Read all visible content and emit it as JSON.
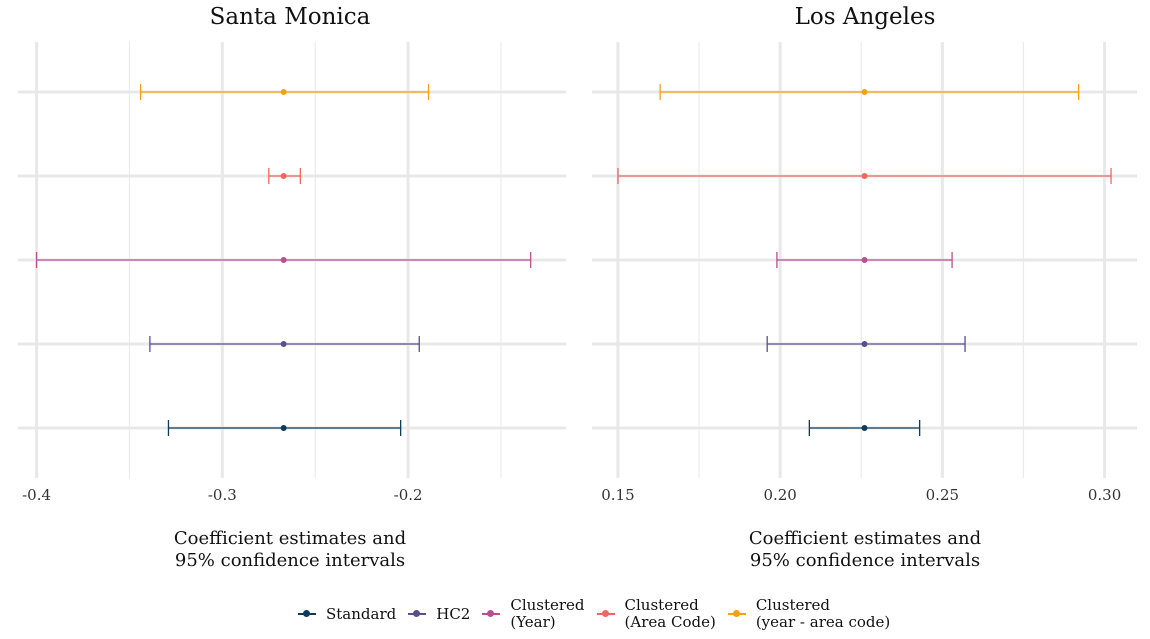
{
  "chart_data": [
    {
      "type": "errorbar",
      "title": "Santa Monica",
      "xlabel": "Coefficient estimates and\n95% confidence intervals",
      "ylabel": "",
      "xlim": [
        -0.41,
        -0.115
      ],
      "xticks": [
        -0.4,
        -0.3,
        -0.2
      ],
      "xtick_labels": [
        "-0.4",
        "-0.3",
        "-0.2"
      ],
      "minor_xticks": [
        -0.35,
        -0.25,
        -0.15
      ],
      "grid": true,
      "series": [
        {
          "name": "Standard",
          "estimate": -0.267,
          "lower": -0.329,
          "upper": -0.204
        },
        {
          "name": "HC2",
          "estimate": -0.267,
          "lower": -0.339,
          "upper": -0.194
        },
        {
          "name": "Clustered (Year)",
          "estimate": -0.267,
          "lower": -0.4,
          "upper": -0.134
        },
        {
          "name": "Clustered (Area Code)",
          "estimate": -0.267,
          "lower": -0.275,
          "upper": -0.258
        },
        {
          "name": "Clustered (year - area code)",
          "estimate": -0.267,
          "lower": -0.344,
          "upper": -0.189
        }
      ]
    },
    {
      "type": "errorbar",
      "title": "Los Angeles",
      "xlabel": "Coefficient estimates and\n95% confidence intervals",
      "ylabel": "",
      "xlim": [
        0.142,
        0.31
      ],
      "xticks": [
        0.15,
        0.2,
        0.25,
        0.3
      ],
      "xtick_labels": [
        "0.15",
        "0.20",
        "0.25",
        "0.30"
      ],
      "minor_xticks": [
        0.175,
        0.225,
        0.275
      ],
      "grid": true,
      "series": [
        {
          "name": "Standard",
          "estimate": 0.226,
          "lower": 0.209,
          "upper": 0.243
        },
        {
          "name": "HC2",
          "estimate": 0.226,
          "lower": 0.196,
          "upper": 0.257
        },
        {
          "name": "Clustered (Year)",
          "estimate": 0.226,
          "lower": 0.199,
          "upper": 0.253
        },
        {
          "name": "Clustered (Area Code)",
          "estimate": 0.226,
          "lower": 0.15,
          "upper": 0.302
        },
        {
          "name": "Clustered (year - area code)",
          "estimate": 0.226,
          "lower": 0.163,
          "upper": 0.292
        }
      ]
    }
  ],
  "legend": {
    "position": "bottom",
    "items": [
      {
        "label": "Standard",
        "color": "#0d3b5a"
      },
      {
        "label": "HC2",
        "color": "#5a4e8f"
      },
      {
        "label": "Clustered\n(Year)",
        "color": "#b94f93"
      },
      {
        "label": "Clustered\n(Area Code)",
        "color": "#f2665e"
      },
      {
        "label": "Clustered\n(year - area code)",
        "color": "#f5a00f"
      }
    ]
  }
}
